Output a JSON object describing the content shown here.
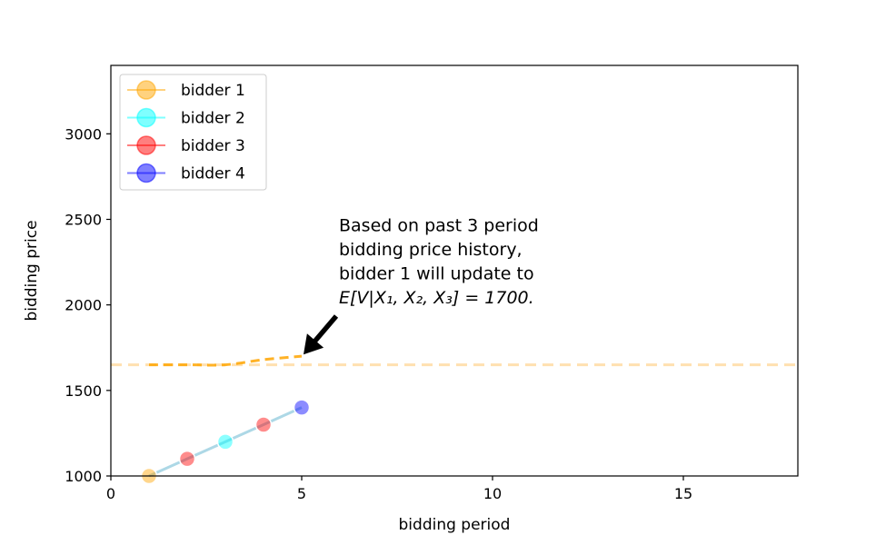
{
  "chart_data": {
    "type": "line",
    "xlabel": "bidding period",
    "ylabel": "bidding price",
    "xlim": [
      0,
      18
    ],
    "ylim": [
      1000,
      3400
    ],
    "xticks": [
      0,
      5,
      10,
      15
    ],
    "yticks": [
      1000,
      1500,
      2000,
      2500,
      3000
    ],
    "grid": false,
    "legend_position": "top-left",
    "legend": [
      {
        "name": "bidder 1",
        "color": "#FFA500"
      },
      {
        "name": "bidder 2",
        "color": "#00FFFF"
      },
      {
        "name": "bidder 3",
        "color": "#FF0000"
      },
      {
        "name": "bidder 4",
        "color": "#0000FF"
      }
    ],
    "bid_history": {
      "line_color": "#ADD8E6",
      "points": [
        {
          "x": 1,
          "y": 1000,
          "bidder": "bidder 1",
          "color": "#FFA500"
        },
        {
          "x": 2,
          "y": 1100,
          "bidder": "bidder 3",
          "color": "#FF0000"
        },
        {
          "x": 3,
          "y": 1200,
          "bidder": "bidder 2",
          "color": "#00FFFF"
        },
        {
          "x": 4,
          "y": 1300,
          "bidder": "bidder 3",
          "color": "#FF0000"
        },
        {
          "x": 5,
          "y": 1400,
          "bidder": "bidder 4",
          "color": "#0000FF"
        }
      ]
    },
    "bidder1_estimate": {
      "color": "#FFA500",
      "x": [
        1,
        2,
        3,
        4,
        5
      ],
      "y": [
        1650,
        1650,
        1650,
        1680,
        1700
      ]
    },
    "reference_line": {
      "y": 1650,
      "color": "#FFE0B0"
    },
    "annotation": {
      "lines": [
        "Based on past 3 period",
        "bidding price history,",
        "bidder 1 will update to",
        "E[V|X₁, X₂, X₃] = 1700."
      ],
      "text_x": 6,
      "text_y": 2000,
      "point_x": 5,
      "point_y": 1700
    }
  }
}
